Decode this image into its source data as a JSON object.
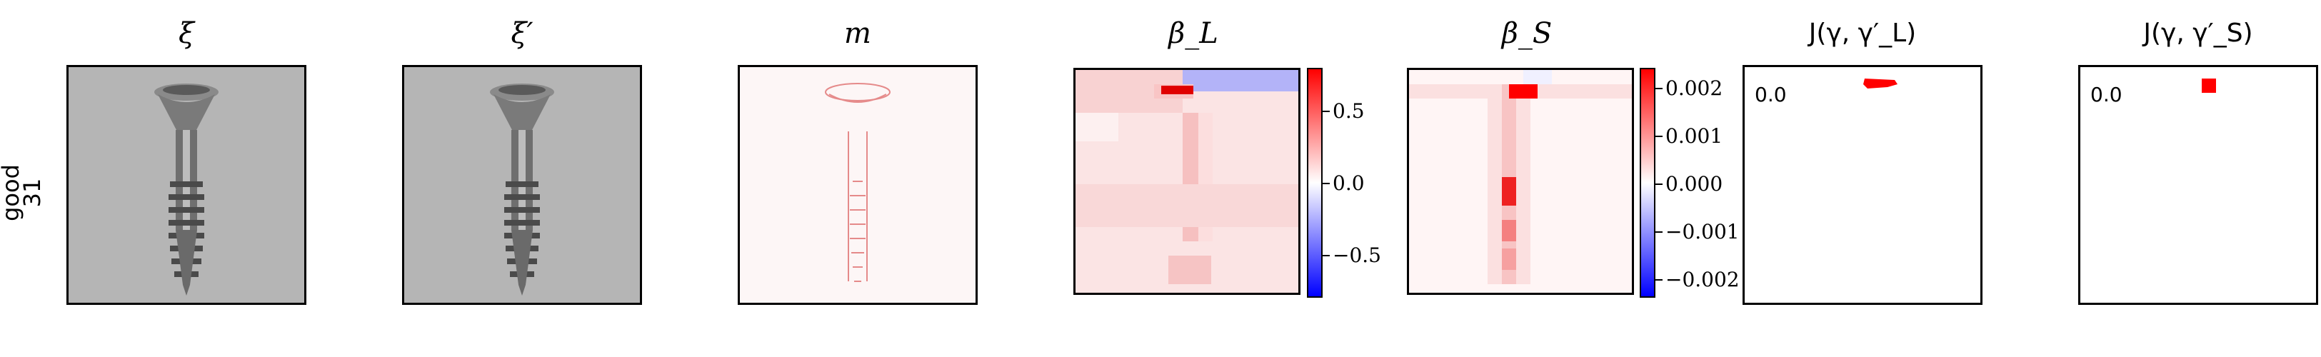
{
  "row_label": {
    "line1": "good",
    "line2": "31"
  },
  "panels": [
    {
      "id": "xi",
      "title": "ξ"
    },
    {
      "id": "xi_prime",
      "title": "ξ′"
    },
    {
      "id": "m",
      "title": "m"
    },
    {
      "id": "beta_L",
      "title": "β_L"
    },
    {
      "id": "beta_S",
      "title": "β_S"
    },
    {
      "id": "J_L",
      "title": "J(γ, γ′_L)",
      "value": "0.0"
    },
    {
      "id": "J_S",
      "title": "J(γ, γ′_S)",
      "value": "0.0"
    }
  ],
  "colorbars": {
    "beta_L": {
      "ticks": [
        "0.5",
        "0.0",
        "−0.5"
      ]
    },
    "beta_S": {
      "ticks": [
        "0.002",
        "0.001",
        "0.000",
        "−0.001",
        "−0.002"
      ]
    }
  },
  "colors": {
    "positive": "#ff0000",
    "neutral": "#ffffff",
    "negative": "#0000ff",
    "image_bg": "#b3b3b3"
  }
}
